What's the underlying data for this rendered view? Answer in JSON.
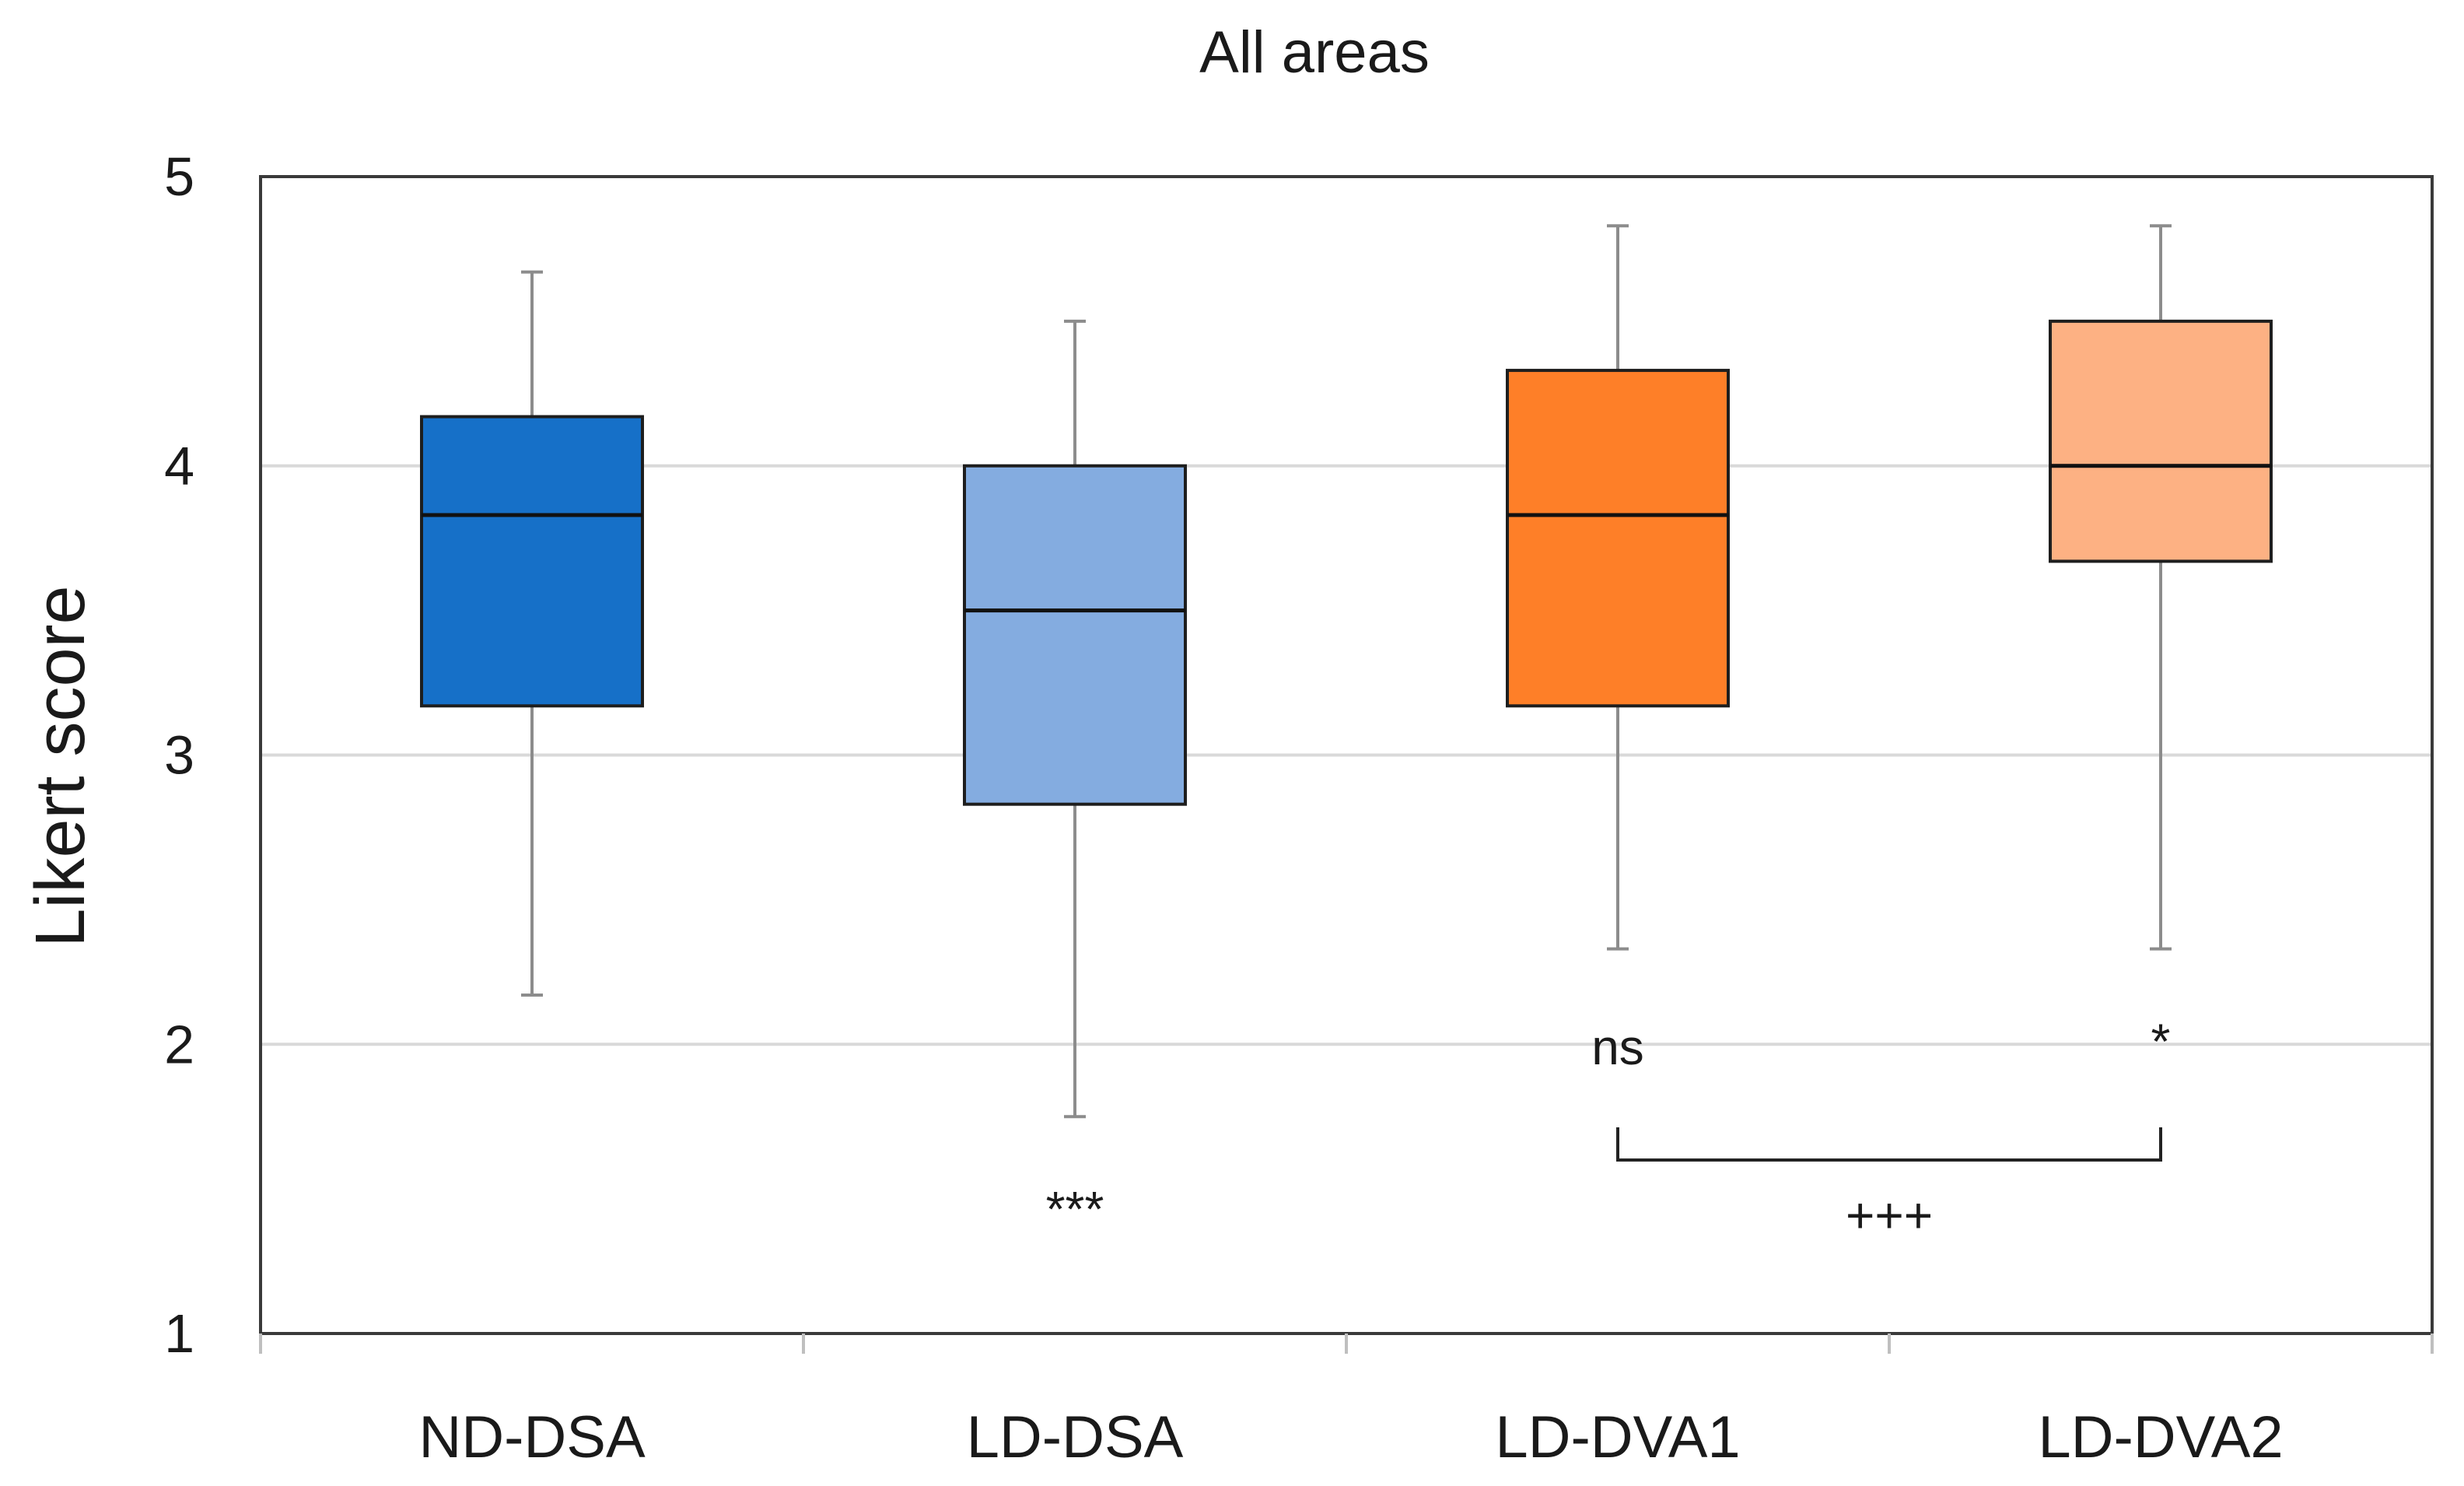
{
  "chart_data": {
    "type": "box",
    "title": "All areas",
    "xlabel": "",
    "ylabel": "Likert score",
    "ylim": [
      1,
      5
    ],
    "yticks": [
      "1",
      "2",
      "3",
      "4",
      "5"
    ],
    "grid": true,
    "categories": [
      "ND-DSA",
      "LD-DSA",
      "LD-DVA1",
      "LD-DVA2"
    ],
    "boxes": [
      {
        "name": "ND-DSA",
        "min": 2.17,
        "q1": 3.17,
        "median": 3.83,
        "q3": 4.17,
        "max": 4.67,
        "color": "#1670c8"
      },
      {
        "name": "LD-DSA",
        "min": 1.75,
        "q1": 2.83,
        "median": 3.5,
        "q3": 4.0,
        "max": 4.5,
        "color": "#84ace0"
      },
      {
        "name": "LD-DVA1",
        "min": 2.33,
        "q1": 3.17,
        "median": 3.83,
        "q3": 4.33,
        "max": 4.83,
        "color": "#fe7f28"
      },
      {
        "name": "LD-DVA2",
        "min": 2.33,
        "q1": 3.67,
        "median": 4.0,
        "q3": 4.5,
        "max": 4.83,
        "color": "#fdb183"
      }
    ],
    "annotations": [
      {
        "text": "***",
        "category": "LD-DSA",
        "y": 1.43
      },
      {
        "text": "ns",
        "category": "LD-DVA1",
        "y": 1.99
      },
      {
        "text": "*",
        "category": "LD-DVA2",
        "y": 2.01
      }
    ],
    "bracket": {
      "from": "LD-DVA1",
      "to": "LD-DVA2",
      "y": 1.6,
      "label": "+++"
    }
  }
}
